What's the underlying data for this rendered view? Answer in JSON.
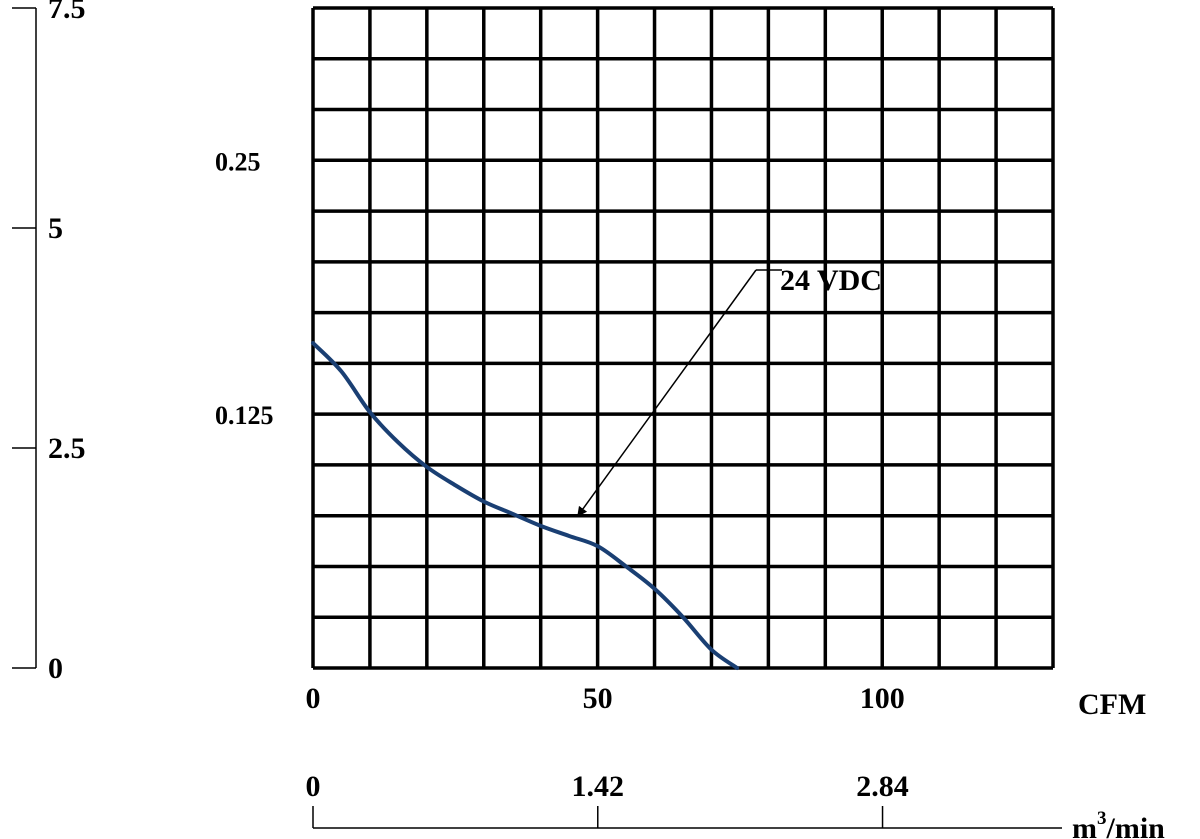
{
  "chart_data": {
    "type": "line",
    "title": "",
    "x": {
      "label": "CFM",
      "range": [
        0,
        130
      ],
      "ticks": [
        0,
        50,
        100
      ],
      "tick_labels": [
        "0",
        "50",
        "100"
      ]
    },
    "x2": {
      "label": "m³/min",
      "unit_base": "m",
      "unit_sup": "3",
      "unit_suffix": "/min",
      "range": [
        0,
        3.69
      ],
      "ticks": [
        0,
        1.42,
        2.84
      ],
      "tick_labels": [
        "0",
        "1.42",
        "2.84"
      ]
    },
    "y_inner": {
      "label": "",
      "range": [
        0,
        0.325
      ],
      "ticks": [
        0.125,
        0.25
      ],
      "tick_labels": [
        "0.125",
        "0.25"
      ]
    },
    "y_outer": {
      "label": "",
      "range": [
        0,
        7.5
      ],
      "ticks": [
        0,
        2.5,
        5,
        7.5
      ],
      "tick_labels": [
        "0",
        "2.5",
        "5",
        "7.5"
      ]
    },
    "grid": true,
    "grid_columns": 13,
    "grid_rows": 13,
    "series": [
      {
        "name": "24 VDC",
        "color": "#1a3f73",
        "x": [
          0,
          5,
          10,
          15,
          20,
          25,
          30,
          35,
          40,
          45,
          50,
          55,
          60,
          65,
          70,
          74.5
        ],
        "y": [
          0.16,
          0.146,
          0.126,
          0.111,
          0.099,
          0.09,
          0.082,
          0.076,
          0.07,
          0.065,
          0.06,
          0.05,
          0.039,
          0.025,
          0.009,
          0
        ]
      }
    ],
    "annotation": {
      "text": "24 VDC",
      "points_to": {
        "x": 43,
        "y": 0.064
      }
    }
  }
}
